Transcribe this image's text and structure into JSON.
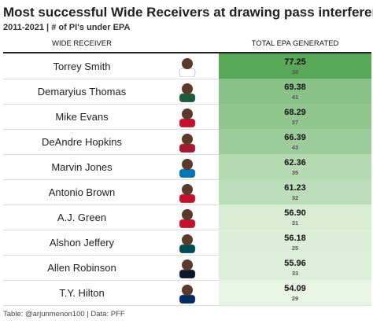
{
  "header": {
    "title": "Most successful Wide Receivers at drawing pass interferences",
    "subtitle": "2011-2021 | # of PI's under EPA"
  },
  "table": {
    "columns": [
      "WIDE RECEIVER",
      "TOTAL EPA GENERATED"
    ],
    "rows": [
      {
        "name": "Torrey Smith",
        "epa": "77.25",
        "count": 38
      },
      {
        "name": "Demaryius Thomas",
        "epa": "69.38",
        "count": 41
      },
      {
        "name": "Mike Evans",
        "epa": "68.29",
        "count": 37
      },
      {
        "name": "DeAndre Hopkins",
        "epa": "66.39",
        "count": 43
      },
      {
        "name": "Marvin Jones",
        "epa": "62.36",
        "count": 35
      },
      {
        "name": "Antonio Brown",
        "epa": "61.23",
        "count": 32
      },
      {
        "name": "A.J. Green",
        "epa": "56.90",
        "count": 31
      },
      {
        "name": "Alshon Jeffery",
        "epa": "56.18",
        "count": 25
      },
      {
        "name": "Allen Robinson",
        "epa": "55.96",
        "count": 33
      },
      {
        "name": "T.Y. Hilton",
        "epa": "54.09",
        "count": 29
      }
    ]
  },
  "footer": {
    "source": "Table: @arjunmenon100 | Data: PFF"
  }
}
